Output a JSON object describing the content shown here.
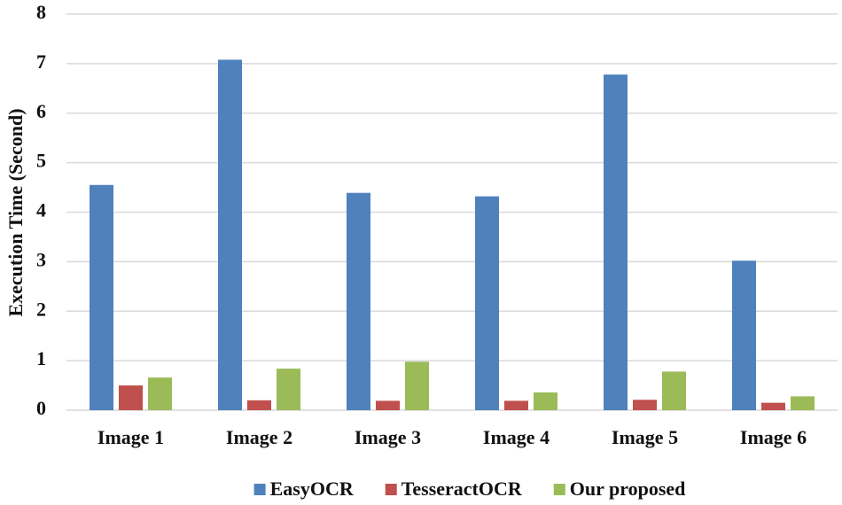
{
  "chart_data": {
    "type": "bar",
    "y_label": "Execution Time (Second)",
    "categories": [
      "Image 1",
      "Image 2",
      "Image 3",
      "Image 4",
      "Image 5",
      "Image 6"
    ],
    "series": [
      {
        "name": "EasyOCR",
        "color": "#4f81bd",
        "values": [
          4.55,
          7.08,
          4.39,
          4.32,
          6.78,
          3.02
        ]
      },
      {
        "name": "TesseractOCR",
        "color": "#c0504d",
        "values": [
          0.5,
          0.2,
          0.19,
          0.19,
          0.21,
          0.15
        ]
      },
      {
        "name": "Our proposed",
        "color": "#9bbb59",
        "values": [
          0.66,
          0.84,
          0.98,
          0.36,
          0.78,
          0.28
        ]
      }
    ],
    "ylim": [
      0,
      8
    ],
    "yticks": [
      0,
      1,
      2,
      3,
      4,
      5,
      6,
      7,
      8
    ],
    "grid": true,
    "legend": "bottom"
  }
}
